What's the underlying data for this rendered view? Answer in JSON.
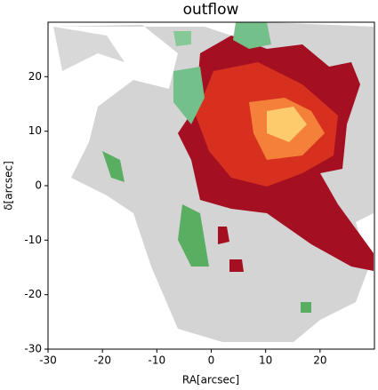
{
  "chart_data": {
    "type": "map",
    "title": "outflow",
    "x_label": "RA[arcsec]",
    "y_label": "δ[arcsec]",
    "xlim": [
      -30,
      30
    ],
    "ylim": [
      -30,
      30
    ],
    "xticks": [
      -30,
      -20,
      -10,
      0,
      10,
      20
    ],
    "yticks": [
      -30,
      -20,
      -10,
      0,
      10,
      20
    ]
  }
}
